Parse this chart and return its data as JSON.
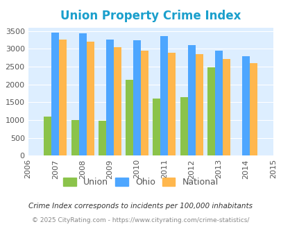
{
  "title": "Union Property Crime Index",
  "years": [
    2006,
    2007,
    2008,
    2009,
    2010,
    2011,
    2012,
    2013,
    2014,
    2015
  ],
  "bar_years": [
    2007,
    2008,
    2009,
    2010,
    2011,
    2012,
    2013,
    2014
  ],
  "union": [
    1090,
    1010,
    980,
    2130,
    1610,
    1640,
    2480,
    0
  ],
  "ohio": [
    3450,
    3440,
    3260,
    3240,
    3360,
    3110,
    2940,
    2790
  ],
  "national": [
    3260,
    3210,
    3040,
    2950,
    2900,
    2860,
    2720,
    2590
  ],
  "union_color": "#8bc34a",
  "ohio_color": "#4da6ff",
  "national_color": "#ffb74d",
  "bg_color": "#ddeeff",
  "ylim": [
    0,
    3600
  ],
  "yticks": [
    0,
    500,
    1000,
    1500,
    2000,
    2500,
    3000,
    3500
  ],
  "xlabel": "",
  "ylabel": "",
  "legend_labels": [
    "Union",
    "Ohio",
    "National"
  ],
  "note1": "Crime Index corresponds to incidents per 100,000 inhabitants",
  "note2": "© 2025 CityRating.com - https://www.cityrating.com/crime-statistics/",
  "title_color": "#1a9fcc",
  "note1_color": "#333333",
  "note2_color": "#888888"
}
